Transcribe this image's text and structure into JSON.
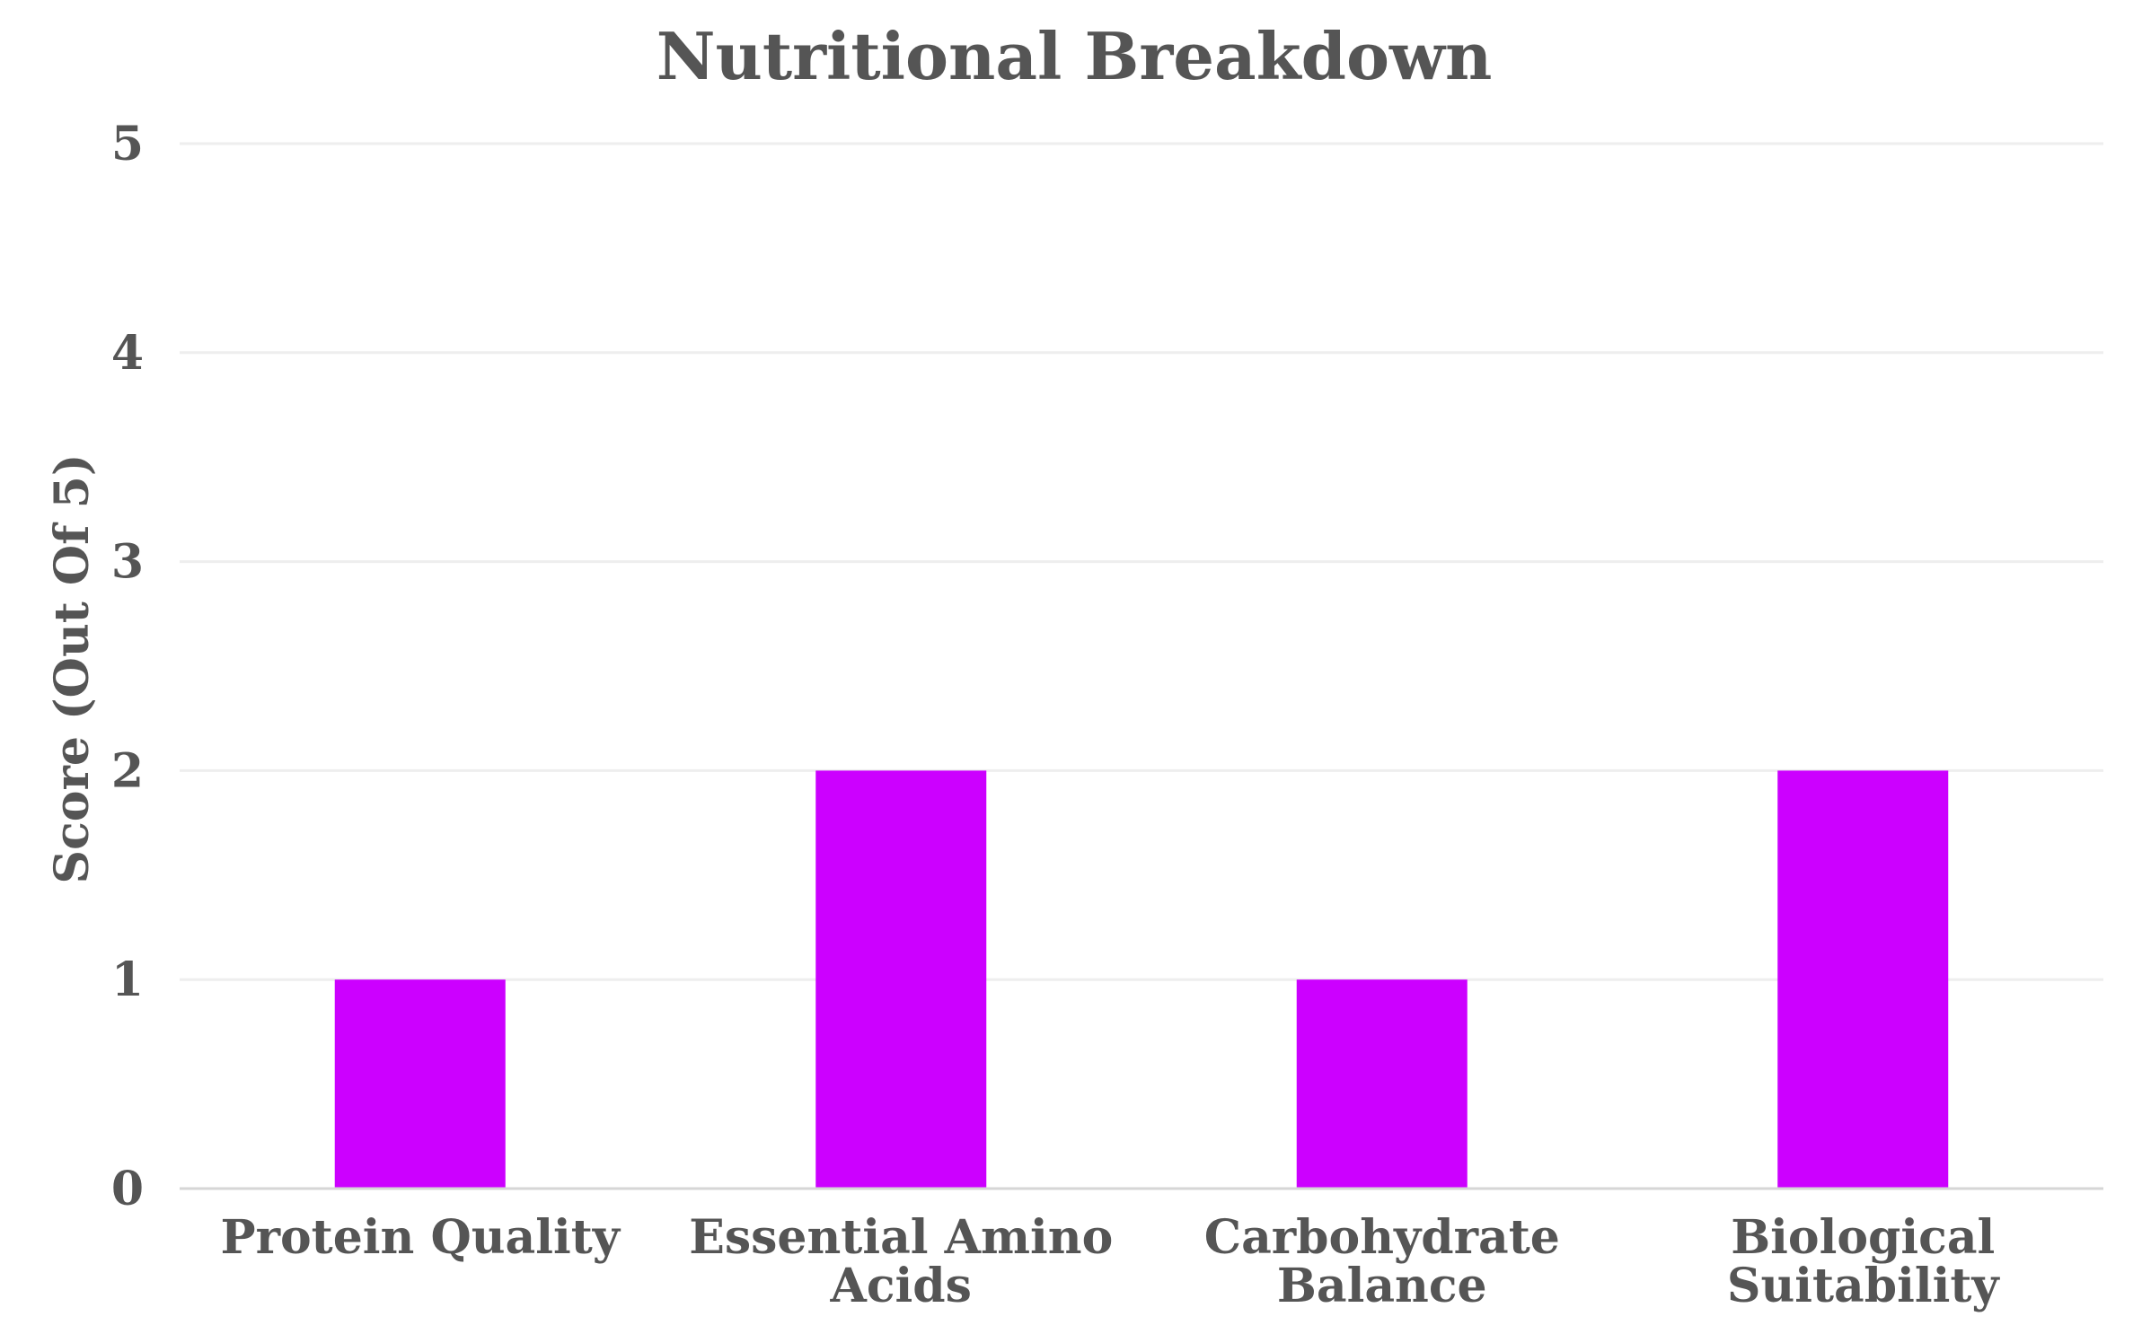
{
  "chart_data": {
    "type": "bar",
    "title": "Nutritional Breakdown",
    "xlabel": "",
    "ylabel": "Score (Out Of 5)",
    "ylim": [
      0,
      5
    ],
    "yticks": [
      0,
      1,
      2,
      3,
      4,
      5
    ],
    "grid": true,
    "categories": [
      [
        "Protein Quality"
      ],
      [
        "Essential Amino",
        "Acids"
      ],
      [
        "Carbohydrate",
        "Balance"
      ],
      [
        "Biological",
        "Suitability"
      ]
    ],
    "values": [
      1,
      2,
      1,
      2
    ],
    "colors": {
      "bar": "#cc00ff",
      "text": "#555555",
      "grid": "#eeeeee",
      "baseline": "#d6d6d6"
    }
  }
}
